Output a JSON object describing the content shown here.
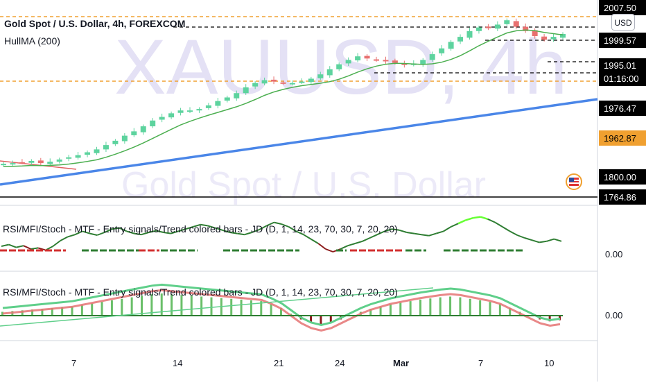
{
  "header": {
    "symbol_title": "Gold Spot / U.S. Dollar, 4h, FOREXCOM",
    "indicator": "HullMA (200)",
    "watermark_symbol": "XAUUSD, 4h",
    "watermark_name": "Gold Spot / U.S. Dollar",
    "currency_button": "USD"
  },
  "oscillators": [
    {
      "label": "RSI/MFI/Stoch - MTF - Entry signals/Trend colored bars - JD (D, 1, 14, 23, 70, 30, 7, 20, 20)",
      "value": "0.00"
    },
    {
      "label": "RSI/MFI/Stoch - MTF - Entry signals/Trend colored bars - JD (D, 1, 14, 23, 70, 30, 7, 20, 20)",
      "value": "0.00"
    }
  ],
  "price_axis": {
    "labels": [
      "2007.50",
      "1999.57",
      "1995.01",
      "01:16:00",
      "1976.47",
      "1962.87",
      "1800.00",
      "1764.86"
    ],
    "highlight": "1962.87"
  },
  "time_axis": [
    "7",
    "14",
    "21",
    "24",
    "Mar",
    "7",
    "10"
  ],
  "colors": {
    "up": "#5dd39e",
    "down": "#e87070",
    "trendline": "#4a86e8",
    "hullma": "#4caf50",
    "dash_orange": "#f0a030",
    "watermark": "#e4e1f5",
    "osc_green": "#2e7d32"
  },
  "chart_data": [
    {
      "type": "candlestick",
      "title": "Gold Spot / U.S. Dollar, 4h, FOREXCOM",
      "ylim": [
        1760,
        2010
      ],
      "x_ticks": [
        "7",
        "14",
        "21",
        "24",
        "Mar",
        "7",
        "10"
      ],
      "close_path": [
        1806,
        1807,
        1808,
        1810,
        1807,
        1809,
        1812,
        1815,
        1818,
        1822,
        1826,
        1832,
        1838,
        1845,
        1851,
        1858,
        1866,
        1871,
        1876,
        1880,
        1880,
        1882,
        1887,
        1893,
        1898,
        1904,
        1912,
        1918,
        1922,
        1920,
        1918,
        1918,
        1920,
        1924,
        1930,
        1937,
        1944,
        1950,
        1955,
        1952,
        1950,
        1948,
        1946,
        1943,
        1945,
        1950,
        1958,
        1966,
        1975,
        1982,
        1990,
        1995,
        1994,
        1999,
        2005,
        1996,
        1990,
        1983,
        1978,
        1982,
        1986
      ],
      "series": [
        {
          "name": "HullMA (200)"
        }
      ],
      "horizontal_levels": [
        2007.5,
        1999.57,
        1995.01,
        1976.47
      ]
    },
    {
      "type": "line",
      "title": "RSI/MFI/Stoch - MTF - Entry signals/Trend colored bars - JD (D, 1, 14, 23, 70, 30, 7, 20, 20)",
      "value_label": "0.00",
      "values": [
        35,
        38,
        33,
        36,
        30,
        32,
        28,
        35,
        45,
        52,
        56,
        62,
        58,
        55,
        60,
        66,
        68,
        62,
        58,
        56,
        60,
        63,
        60,
        58,
        62,
        66,
        70,
        74,
        72,
        68,
        64,
        60,
        58,
        56,
        60,
        65,
        72,
        78,
        75,
        70,
        62,
        56,
        48,
        40,
        30,
        25,
        30,
        36,
        40,
        44,
        50,
        56,
        62,
        66,
        64,
        60,
        58,
        56,
        54,
        58,
        62,
        70,
        76,
        82,
        86,
        88,
        84,
        78,
        70,
        62,
        55,
        50,
        46,
        42,
        44,
        48,
        44
      ]
    },
    {
      "type": "area",
      "title": "RSI/MFI/Stoch - MTF - Entry signals/Trend colored bars - JD (D, 1, 14, 23, 70, 30, 7, 20, 20)",
      "value_label": "0.00",
      "values": [
        10,
        12,
        14,
        16,
        18,
        20,
        22,
        24,
        28,
        32,
        36,
        40,
        44,
        48,
        52,
        56,
        58,
        56,
        54,
        52,
        50,
        48,
        46,
        44,
        42,
        40,
        38,
        30,
        20,
        5,
        -10,
        -20,
        -25,
        -20,
        -10,
        0,
        10,
        18,
        24,
        30,
        34,
        38,
        42,
        45,
        48,
        50,
        48,
        44,
        40,
        36,
        30,
        20,
        10,
        0,
        -10,
        -15,
        -12
      ]
    }
  ]
}
